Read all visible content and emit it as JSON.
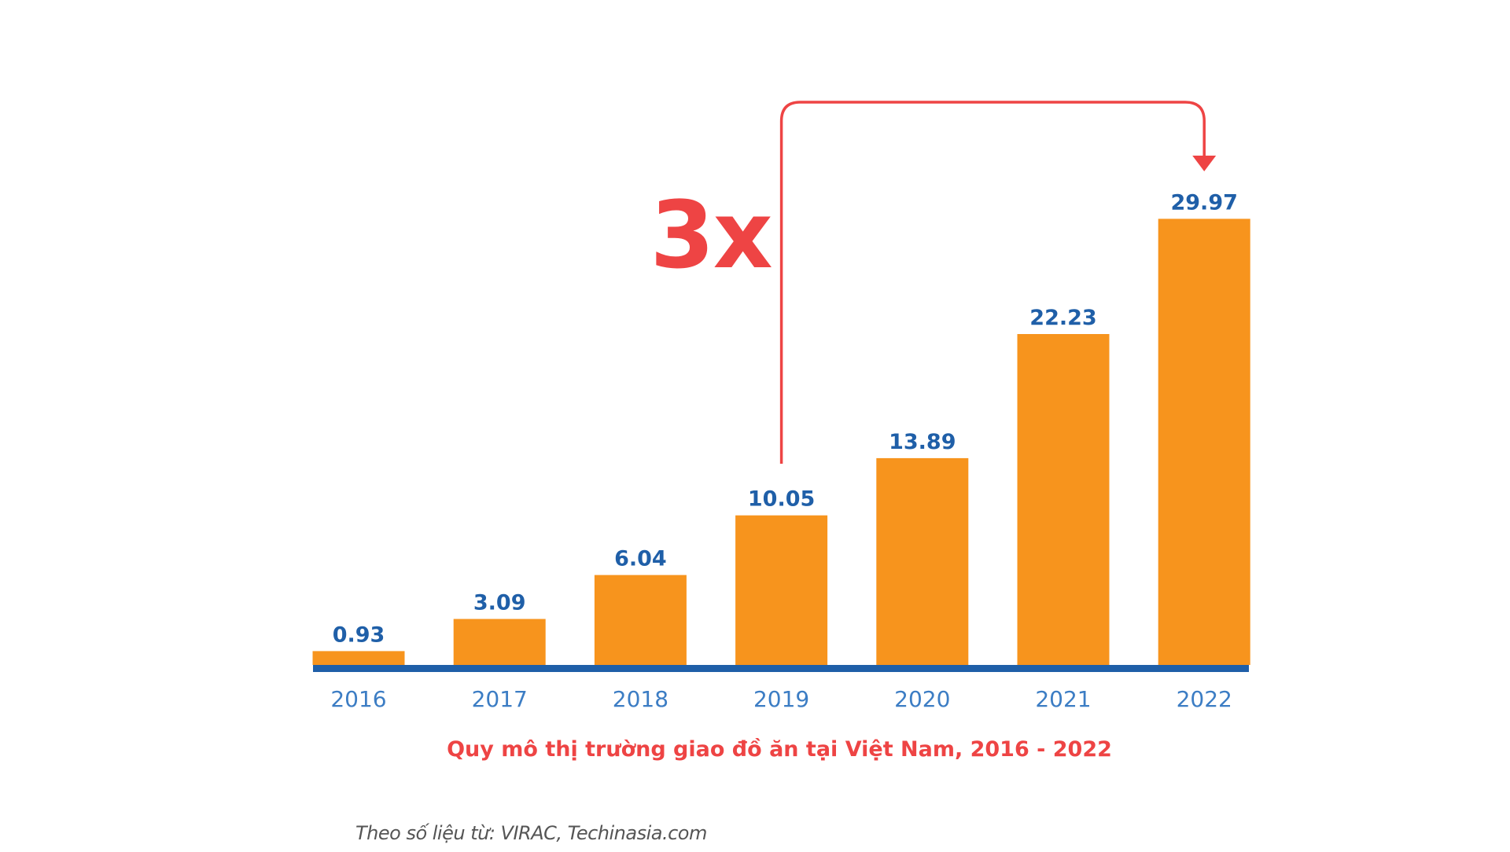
{
  "colors": {
    "bar": "#F7941D",
    "value_label": "#1F5FA8",
    "axis_line": "#1F5FA8",
    "tick_label": "#3C7DC4",
    "accent": "#EE4444"
  },
  "chart_data": {
    "type": "bar",
    "categories": [
      "2016",
      "2017",
      "2018",
      "2019",
      "2020",
      "2021",
      "2022"
    ],
    "values": [
      0.93,
      3.09,
      6.04,
      10.05,
      13.89,
      22.23,
      29.97
    ],
    "value_labels": [
      "0.93",
      "3.09",
      "6.04",
      "10.05",
      "13.89",
      "22.23",
      "29.97"
    ],
    "title": "Quy mô thị trường giao đồ ăn tại Việt Nam, 2016 - 2022",
    "xlabel": "",
    "ylabel": "",
    "grid": false,
    "annotation": {
      "text": "3x",
      "from_category": "2019",
      "to_category": "2022"
    }
  },
  "source_note": "Theo số liệu từ: VIRAC, Techinasia.com"
}
